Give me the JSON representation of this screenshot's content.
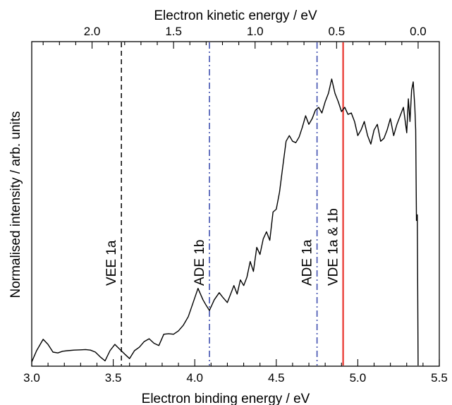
{
  "chart_data": {
    "type": "line",
    "title": "",
    "xlabel": "Electron binding energy / eV",
    "x2label": "Electron kinetic energy / eV",
    "ylabel": "Normalised intensity / arb. units",
    "xlim": [
      3.0,
      5.5
    ],
    "x2_offset_eV": 5.37,
    "x_ticks": [
      "3.0",
      "3.5",
      "4.0",
      "4.5",
      "5.0",
      "5.5"
    ],
    "x2_ticks": [
      "2.0",
      "1.5",
      "1.0",
      "0.5",
      "0.0"
    ],
    "grid": false,
    "legend": "none",
    "annotations": [
      {
        "label": "VEE 1a",
        "x": 3.55,
        "style": "dashed",
        "color": "#000000"
      },
      {
        "label": "ADE 1b",
        "x": 4.09,
        "style": "dashdot",
        "color": "#3344aa"
      },
      {
        "label": "ADE 1a",
        "x": 4.75,
        "style": "dashdot",
        "color": "#3344aa"
      },
      {
        "label": "VDE 1a & 1b",
        "x": 4.91,
        "style": "solid",
        "color": "#e8332b"
      }
    ],
    "series": [
      {
        "color": "#000000",
        "x": [
          3.0,
          3.03,
          3.07,
          3.1,
          3.13,
          3.16,
          3.19,
          3.22,
          3.26,
          3.3,
          3.33,
          3.36,
          3.39,
          3.42,
          3.45,
          3.48,
          3.51,
          3.54,
          3.57,
          3.6,
          3.63,
          3.66,
          3.69,
          3.72,
          3.75,
          3.78,
          3.81,
          3.84,
          3.87,
          3.9,
          3.93,
          3.96,
          3.99,
          4.02,
          4.05,
          4.07,
          4.09,
          4.12,
          4.15,
          4.17,
          4.2,
          4.22,
          4.24,
          4.26,
          4.28,
          4.3,
          4.32,
          4.34,
          4.36,
          4.38,
          4.4,
          4.42,
          4.44,
          4.46,
          4.48,
          4.5,
          4.52,
          4.54,
          4.56,
          4.58,
          4.6,
          4.62,
          4.64,
          4.66,
          4.68,
          4.7,
          4.72,
          4.74,
          4.76,
          4.78,
          4.8,
          4.82,
          4.84,
          4.86,
          4.88,
          4.9,
          4.92,
          4.94,
          4.96,
          4.98,
          5.0,
          5.02,
          5.04,
          5.06,
          5.08,
          5.1,
          5.12,
          5.14,
          5.16,
          5.18,
          5.2,
          5.22,
          5.24,
          5.26,
          5.28,
          5.3,
          5.31,
          5.32,
          5.33,
          5.34,
          5.35,
          5.355,
          5.36,
          5.365,
          5.37
        ],
        "y": [
          0.0,
          0.04,
          0.08,
          0.062,
          0.035,
          0.032,
          0.038,
          0.04,
          0.042,
          0.043,
          0.044,
          0.042,
          0.035,
          0.018,
          0.004,
          0.04,
          0.062,
          0.045,
          0.028,
          0.012,
          0.04,
          0.052,
          0.072,
          0.082,
          0.066,
          0.058,
          0.098,
          0.1,
          0.098,
          0.11,
          0.13,
          0.16,
          0.21,
          0.26,
          0.22,
          0.2,
          0.182,
          0.22,
          0.245,
          0.23,
          0.21,
          0.24,
          0.27,
          0.24,
          0.29,
          0.27,
          0.3,
          0.355,
          0.32,
          0.405,
          0.38,
          0.435,
          0.46,
          0.43,
          0.53,
          0.54,
          0.6,
          0.69,
          0.78,
          0.8,
          0.78,
          0.775,
          0.795,
          0.83,
          0.87,
          0.84,
          0.86,
          0.89,
          0.9,
          0.88,
          0.92,
          0.95,
          1.0,
          0.95,
          0.92,
          0.885,
          0.9,
          0.875,
          0.88,
          0.85,
          0.8,
          0.82,
          0.85,
          0.8,
          0.77,
          0.82,
          0.84,
          0.78,
          0.79,
          0.82,
          0.86,
          0.8,
          0.84,
          0.87,
          0.9,
          0.81,
          0.93,
          0.85,
          0.96,
          0.99,
          0.9,
          0.82,
          0.5,
          0.52,
          0.0
        ]
      }
    ]
  }
}
